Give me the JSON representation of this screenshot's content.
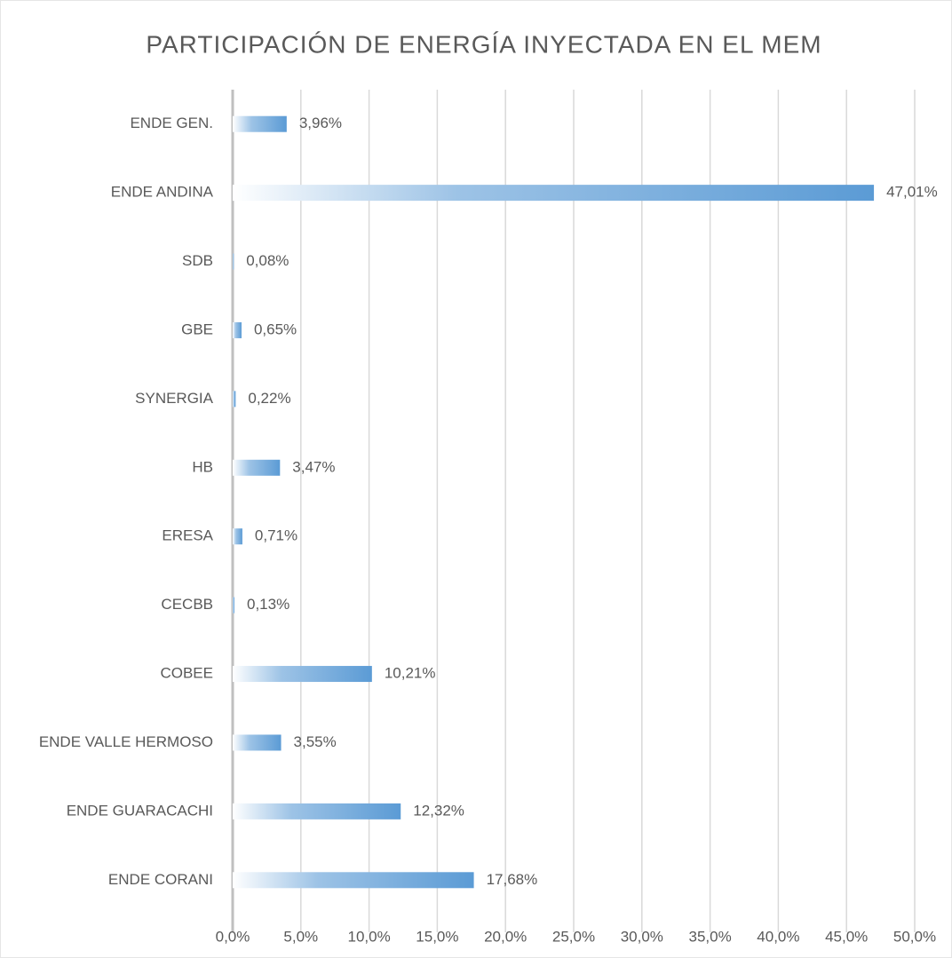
{
  "chart_data": {
    "type": "bar",
    "orientation": "horizontal",
    "title": "PARTICIPACIÓN DE ENERGÍA INYECTADA EN EL MEM",
    "categories": [
      "ENDE GEN.",
      "ENDE ANDINA",
      "SDB",
      "GBE",
      "SYNERGIA",
      "HB",
      "ERESA",
      "CECBB",
      "COBEE",
      "ENDE VALLE HERMOSO",
      "ENDE GUARACACHI",
      "ENDE CORANI"
    ],
    "values": [
      3.96,
      47.01,
      0.08,
      0.65,
      0.22,
      3.47,
      0.71,
      0.13,
      10.21,
      3.55,
      12.32,
      17.68
    ],
    "value_labels": [
      "3,96%",
      "47,01%",
      "0,08%",
      "0,65%",
      "0,22%",
      "3,47%",
      "0,71%",
      "0,13%",
      "10,21%",
      "3,55%",
      "12,32%",
      "17,68%"
    ],
    "color": "#5b9bd5",
    "xlim": [
      0,
      50
    ],
    "xticks": [
      {
        "value": 0,
        "label": "0,0%"
      },
      {
        "value": 5,
        "label": "5,0%"
      },
      {
        "value": 10,
        "label": "10,0%"
      },
      {
        "value": 15,
        "label": "15,0%"
      },
      {
        "value": 20,
        "label": "20,0%"
      },
      {
        "value": 25,
        "label": "25,0%"
      },
      {
        "value": 30,
        "label": "30,0%"
      },
      {
        "value": 35,
        "label": "35,0%"
      },
      {
        "value": 40,
        "label": "40,0%"
      },
      {
        "value": 45,
        "label": "45,0%"
      },
      {
        "value": 50,
        "label": "50,0%"
      }
    ],
    "grid": true
  }
}
